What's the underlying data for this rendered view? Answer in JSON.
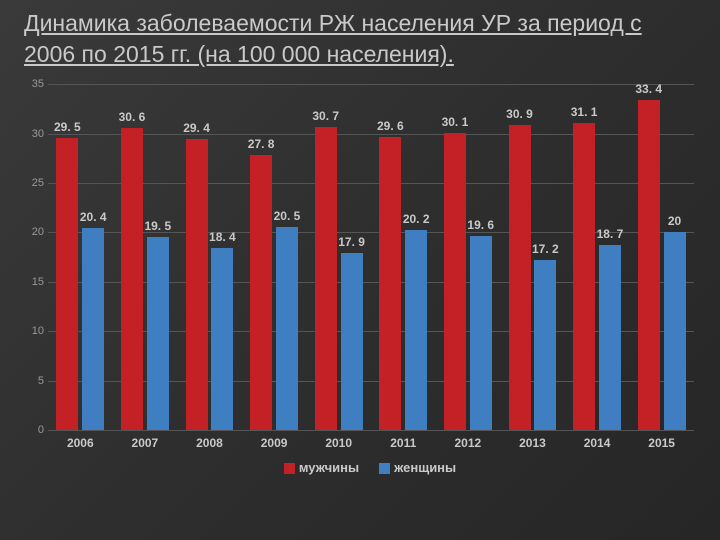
{
  "title": "Динамика заболеваемости РЖ населения УР за период с 2006 по 2015 гг. (на 100 000 населения).",
  "chart": {
    "type": "bar",
    "categories": [
      "2006",
      "2007",
      "2008",
      "2009",
      "2010",
      "2011",
      "2012",
      "2013",
      "2014",
      "2015"
    ],
    "series": [
      {
        "name": "мужчины",
        "color": "#c42127",
        "values": [
          29.5,
          30.6,
          29.4,
          27.8,
          30.7,
          29.6,
          30.1,
          30.9,
          31.1,
          33.4
        ],
        "labels": [
          "29. 5",
          "30. 6",
          "29. 4",
          "27. 8",
          "30. 7",
          "29. 6",
          "30. 1",
          "30. 9",
          "31. 1",
          "33. 4"
        ]
      },
      {
        "name": "женщины",
        "color": "#3e7ec1",
        "values": [
          20.4,
          19.5,
          18.4,
          20.5,
          17.9,
          20.2,
          19.6,
          17.2,
          18.7,
          20.0
        ],
        "labels": [
          "20. 4",
          "19. 5",
          "18. 4",
          "20. 5",
          "17. 9",
          "20. 2",
          "19. 6",
          "17. 2",
          "18. 7",
          "20"
        ]
      }
    ],
    "ylim": [
      0,
      35
    ],
    "yticks": [
      0,
      5,
      10,
      15,
      20,
      25,
      30,
      35
    ],
    "grid_color": "#555555",
    "background": "transparent",
    "title_fontsize": 23,
    "label_fontsize": 12,
    "bar_group_width": 0.74
  }
}
